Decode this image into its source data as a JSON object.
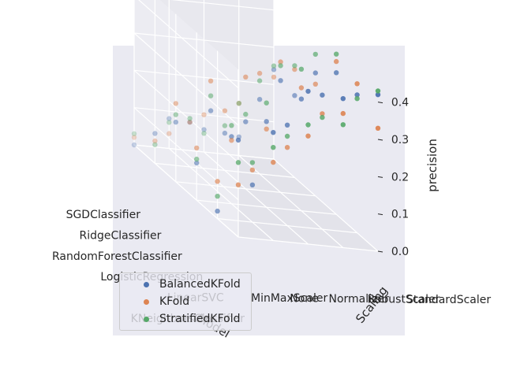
{
  "chart_data": {
    "type": "scatter",
    "projection": "3d",
    "zlabel": "precision",
    "ylabel": "Scaling",
    "xlabel": "Model",
    "x_categories": [
      "KNeighborsClassifier",
      "LinearSVC",
      "LogisticRegression",
      "RandomForestClassifier",
      "RidgeClassifier",
      "SGDClassifier"
    ],
    "y_categories": [
      "MinMaxScaler",
      "None",
      "Normalizer",
      "RobustScaler",
      "StandardScaler"
    ],
    "zlim": [
      0.0,
      0.45
    ],
    "z_ticks": [
      "0.0",
      "0.1",
      "0.2",
      "0.3",
      "0.4"
    ],
    "legend_position": "lower-left",
    "grid": true,
    "series": [
      {
        "name": "BalancedKFold",
        "color": "#4c72b0",
        "points": [
          [
            0,
            0,
            0.26
          ],
          [
            0,
            1,
            0.29
          ],
          [
            0,
            2,
            0.41
          ],
          [
            0,
            3,
            0.4
          ],
          [
            0,
            4,
            0.42
          ],
          [
            1,
            0,
            0.02
          ],
          [
            1,
            1,
            0.1
          ],
          [
            1,
            2,
            0.27
          ],
          [
            1,
            3,
            0.36
          ],
          [
            1,
            4,
            0.37
          ],
          [
            2,
            0,
            0.1
          ],
          [
            2,
            1,
            0.18
          ],
          [
            2,
            2,
            0.23
          ],
          [
            2,
            3,
            0.3
          ],
          [
            2,
            4,
            0.38
          ],
          [
            3,
            0,
            0.16
          ],
          [
            3,
            1,
            0.2
          ],
          [
            3,
            2,
            0.18
          ],
          [
            3,
            3,
            0.3
          ],
          [
            3,
            4,
            0.33
          ],
          [
            4,
            0,
            0.08
          ],
          [
            4,
            1,
            0.12
          ],
          [
            4,
            2,
            0.1
          ],
          [
            4,
            3,
            0.2
          ],
          [
            4,
            4,
            0.22
          ],
          [
            5,
            0,
            0.0
          ],
          [
            5,
            1,
            0.08
          ],
          [
            5,
            2,
            0.06
          ],
          [
            5,
            3,
            0.05
          ],
          [
            5,
            4,
            0.24
          ]
        ]
      },
      {
        "name": "KFold",
        "color": "#dd8452",
        "points": [
          [
            0,
            0,
            0.14
          ],
          [
            0,
            1,
            0.21
          ],
          [
            0,
            2,
            0.29
          ],
          [
            0,
            3,
            0.36
          ],
          [
            0,
            4,
            0.33
          ],
          [
            1,
            0,
            0.1
          ],
          [
            1,
            1,
            0.14
          ],
          [
            1,
            2,
            0.21
          ],
          [
            1,
            3,
            0.31
          ],
          [
            1,
            4,
            0.4
          ],
          [
            2,
            0,
            0.14
          ],
          [
            2,
            1,
            0.17
          ],
          [
            2,
            2,
            0.21
          ],
          [
            2,
            3,
            0.33
          ],
          [
            2,
            4,
            0.41
          ],
          [
            3,
            0,
            0.21
          ],
          [
            3,
            1,
            0.28
          ],
          [
            3,
            2,
            0.3
          ],
          [
            3,
            3,
            0.35
          ],
          [
            3,
            4,
            0.3
          ],
          [
            4,
            0,
            0.06
          ],
          [
            4,
            1,
            0.12
          ],
          [
            4,
            2,
            0.16
          ],
          [
            4,
            3,
            0.27
          ],
          [
            4,
            4,
            0.29
          ],
          [
            5,
            0,
            0.02
          ],
          [
            5,
            1,
            0.04
          ],
          [
            5,
            2,
            0.1
          ],
          [
            5,
            3,
            0.14
          ],
          [
            5,
            4,
            0.22
          ]
        ]
      },
      {
        "name": "StratifiedKFold",
        "color": "#55a868",
        "points": [
          [
            0,
            0,
            0.2
          ],
          [
            0,
            1,
            0.25
          ],
          [
            0,
            2,
            0.32
          ],
          [
            0,
            3,
            0.33
          ],
          [
            0,
            4,
            0.43
          ],
          [
            1,
            0,
            0.06
          ],
          [
            1,
            1,
            0.16
          ],
          [
            1,
            2,
            0.24
          ],
          [
            1,
            3,
            0.3
          ],
          [
            1,
            4,
            0.36
          ],
          [
            2,
            0,
            0.11
          ],
          [
            2,
            1,
            0.21
          ],
          [
            2,
            2,
            0.28
          ],
          [
            2,
            3,
            0.38
          ],
          [
            2,
            4,
            0.43
          ],
          [
            3,
            0,
            0.18
          ],
          [
            3,
            1,
            0.24
          ],
          [
            3,
            2,
            0.2
          ],
          [
            3,
            3,
            0.34
          ],
          [
            3,
            4,
            0.38
          ],
          [
            4,
            0,
            0.05
          ],
          [
            4,
            1,
            0.13
          ],
          [
            4,
            2,
            0.12
          ],
          [
            4,
            3,
            0.25
          ],
          [
            4,
            4,
            0.3
          ],
          [
            5,
            0,
            0.03
          ],
          [
            5,
            1,
            0.07
          ],
          [
            5,
            2,
            0.05
          ],
          [
            5,
            3,
            0.14
          ],
          [
            5,
            4,
            0.25
          ]
        ]
      }
    ]
  }
}
